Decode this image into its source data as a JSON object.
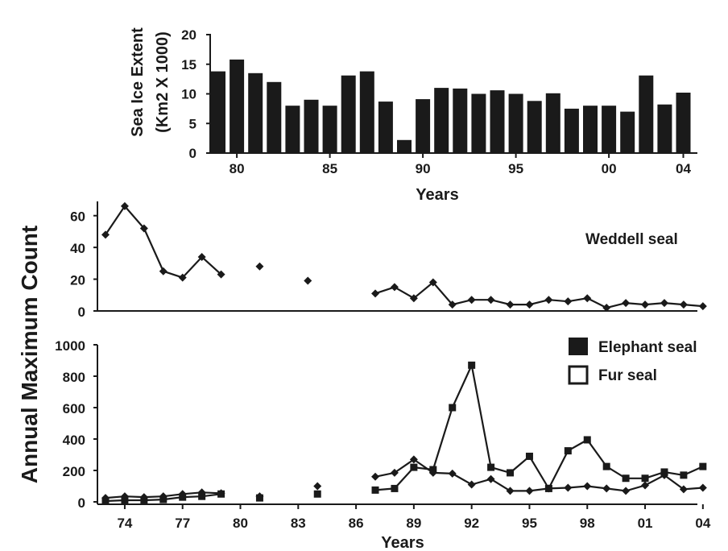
{
  "chart_data": [
    {
      "type": "bar",
      "ylabel_lines": [
        "Sea Ice Extent",
        "(Km2 X 1000)"
      ],
      "xlabel": "Years",
      "ylim": [
        0,
        20
      ],
      "yticks": [
        0,
        5,
        10,
        15,
        20
      ],
      "xtick_labels": [
        {
          "year": 1980,
          "label": "80"
        },
        {
          "year": 1985,
          "label": "85"
        },
        {
          "year": 1990,
          "label": "90"
        },
        {
          "year": 1995,
          "label": "95"
        },
        {
          "year": 2000,
          "label": "00"
        },
        {
          "year": 2004,
          "label": "04"
        }
      ],
      "categories": [
        1979,
        1980,
        1981,
        1982,
        1983,
        1984,
        1985,
        1986,
        1987,
        1988,
        1989,
        1990,
        1991,
        1992,
        1993,
        1994,
        1995,
        1996,
        1997,
        1998,
        1999,
        2000,
        2001,
        2002,
        2003,
        2004
      ],
      "values": [
        13.8,
        15.8,
        13.5,
        12.0,
        8.0,
        9.0,
        8.0,
        13.1,
        13.8,
        8.7,
        2.2,
        9.1,
        11.0,
        10.9,
        10.0,
        10.6,
        10.0,
        8.8,
        10.1,
        7.5,
        8.0,
        8.0,
        7.0,
        13.1,
        8.2,
        10.2
      ]
    },
    {
      "type": "line",
      "series_label": "Weddell seal",
      "ylim": [
        0,
        70
      ],
      "yticks": [
        0,
        20,
        40,
        60
      ],
      "series": [
        {
          "name": "Weddell seal",
          "marker": "diamond",
          "segments": [
            [
              [
                1973,
                48
              ],
              [
                1974,
                66
              ],
              [
                1975,
                52
              ],
              [
                1976,
                25
              ],
              [
                1977,
                21
              ],
              [
                1978,
                34
              ],
              [
                1979,
                23
              ]
            ],
            [
              [
                1981,
                28
              ]
            ],
            [
              [
                1983.5,
                19
              ]
            ],
            [
              [
                1987,
                11
              ],
              [
                1988,
                15
              ],
              [
                1989,
                8
              ],
              [
                1990,
                18
              ],
              [
                1991,
                4
              ],
              [
                1992,
                7
              ],
              [
                1993,
                7
              ],
              [
                1994,
                4
              ],
              [
                1995,
                4
              ],
              [
                1996,
                7
              ],
              [
                1997,
                6
              ],
              [
                1998,
                8
              ],
              [
                1999,
                2
              ],
              [
                2000,
                5
              ],
              [
                2001,
                4
              ],
              [
                2002,
                5
              ],
              [
                2003,
                4
              ],
              [
                2004,
                3
              ]
            ]
          ]
        }
      ]
    },
    {
      "type": "line",
      "ylabel": "Annual Maximum Count",
      "xlabel": "Years",
      "ylim": [
        0,
        1000
      ],
      "yticks": [
        0,
        200,
        400,
        600,
        800,
        1000
      ],
      "xtick_labels": [
        {
          "year": 1974,
          "label": "74"
        },
        {
          "year": 1977,
          "label": "77"
        },
        {
          "year": 1980,
          "label": "80"
        },
        {
          "year": 1983,
          "label": "83"
        },
        {
          "year": 1986,
          "label": "86"
        },
        {
          "year": 1989,
          "label": "89"
        },
        {
          "year": 1992,
          "label": "92"
        },
        {
          "year": 1995,
          "label": "95"
        },
        {
          "year": 1998,
          "label": "98"
        },
        {
          "year": 2001,
          "label": "01"
        },
        {
          "year": 2004,
          "label": "04"
        }
      ],
      "legend": [
        "Elephant seal",
        "Fur seal"
      ],
      "legend_position": "top-right",
      "series": [
        {
          "name": "Elephant seal",
          "marker": "square",
          "segments": [
            [
              [
                1973,
                5
              ],
              [
                1974,
                10
              ],
              [
                1975,
                10
              ],
              [
                1976,
                15
              ],
              [
                1977,
                30
              ],
              [
                1978,
                35
              ],
              [
                1979,
                50
              ]
            ],
            [
              [
                1981,
                25
              ]
            ],
            [
              [
                1984,
                50
              ]
            ],
            [
              [
                1987,
                75
              ],
              [
                1988,
                85
              ],
              [
                1989,
                220
              ],
              [
                1990,
                205
              ],
              [
                1991,
                600
              ],
              [
                1992,
                870
              ],
              [
                1993,
                220
              ],
              [
                1994,
                185
              ],
              [
                1995,
                290
              ],
              [
                1996,
                85
              ],
              [
                1997,
                325
              ],
              [
                1998,
                395
              ],
              [
                1999,
                225
              ],
              [
                2000,
                150
              ],
              [
                2001,
                150
              ],
              [
                2002,
                190
              ],
              [
                2003,
                170
              ],
              [
                2004,
                225
              ]
            ]
          ]
        },
        {
          "name": "Fur seal",
          "marker": "diamond",
          "segments": [
            [
              [
                1973,
                25
              ],
              [
                1974,
                35
              ],
              [
                1975,
                30
              ],
              [
                1976,
                35
              ],
              [
                1977,
                50
              ],
              [
                1978,
                60
              ],
              [
                1979,
                55
              ]
            ],
            [
              [
                1981,
                35
              ]
            ],
            [
              [
                1984,
                100
              ]
            ],
            [
              [
                1987,
                160
              ],
              [
                1988,
                185
              ],
              [
                1989,
                270
              ],
              [
                1990,
                185
              ],
              [
                1991,
                180
              ],
              [
                1992,
                110
              ],
              [
                1993,
                145
              ],
              [
                1994,
                70
              ],
              [
                1995,
                70
              ],
              [
                1996,
                85
              ],
              [
                1997,
                90
              ],
              [
                1998,
                100
              ],
              [
                1999,
                85
              ],
              [
                2000,
                70
              ],
              [
                2001,
                105
              ],
              [
                2002,
                170
              ],
              [
                2003,
                80
              ],
              [
                2004,
                90
              ]
            ]
          ]
        }
      ]
    }
  ]
}
